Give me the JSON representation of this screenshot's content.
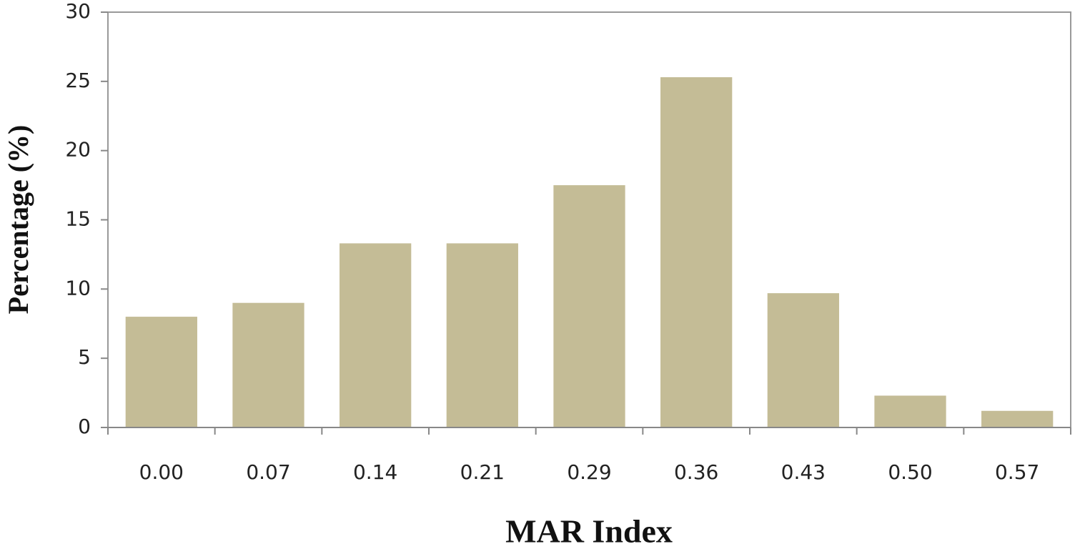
{
  "chart_data": {
    "type": "bar",
    "x_label": "MAR Index",
    "y_label": "Percentage (%)",
    "categories": [
      "0.00",
      "0.07",
      "0.14",
      "0.21",
      "0.29",
      "0.36",
      "0.43",
      "0.50",
      "0.57"
    ],
    "values": [
      8.0,
      9.0,
      13.3,
      13.3,
      17.5,
      25.3,
      9.7,
      2.3,
      1.2
    ],
    "color": "#c4bc96",
    "ylim": [
      0,
      30
    ],
    "yticks": [
      0,
      5,
      10,
      15,
      20,
      25,
      30
    ],
    "grid": false
  }
}
